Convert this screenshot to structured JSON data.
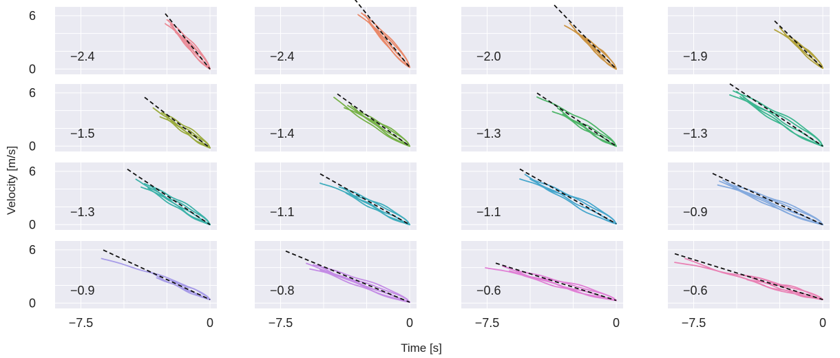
{
  "figure": {
    "xlabel": "Time [s]",
    "ylabel": "Velocity [m/s]",
    "xticks": [
      -7.5,
      0
    ],
    "xtick_labels": [
      "−7.5",
      "0"
    ],
    "yticks": [
      0,
      6
    ],
    "ytick_labels": [
      "0",
      "6"
    ],
    "xlim": [
      -9,
      0.4
    ],
    "ylim": [
      -0.6,
      7
    ],
    "background": "#eaeaf2",
    "grid": true
  },
  "chart_data": [
    {
      "type": "line",
      "label": "−2.4",
      "color": "#ea8a96",
      "t0": -2.6,
      "slope": -2.4,
      "v_end": 0.0,
      "tstarts": [
        -2.6,
        -2.4,
        -2.2,
        -2.5,
        -2.1,
        -2.3,
        -2.0
      ],
      "wobble": 0.3
    },
    {
      "type": "line",
      "label": "−2.4",
      "color": "#e9896a",
      "t0": -3.2,
      "slope": -2.4,
      "v_end": 0.2,
      "tstarts": [
        -3.0,
        -2.6,
        -2.2,
        -2.8,
        -2.4,
        -2.0
      ],
      "wobble": 0.2
    },
    {
      "type": "line",
      "label": "−2.0",
      "color": "#cc9545",
      "t0": -3.6,
      "slope": -2.0,
      "v_end": 0.0,
      "tstarts": [
        -3.0,
        -2.7,
        -2.4,
        -2.0,
        -1.8,
        -2.2
      ],
      "wobble": 0.3
    },
    {
      "type": "line",
      "label": "−1.9",
      "color": "#b2a33c",
      "t0": -2.8,
      "slope": -1.9,
      "v_end": 0.1,
      "tstarts": [
        -2.8,
        -2.5,
        -2.2,
        -2.0
      ],
      "wobble": 0.2
    },
    {
      "type": "line",
      "label": "−1.5",
      "color": "#9aab3e",
      "t0": -3.8,
      "slope": -1.5,
      "v_end": -0.2,
      "tstarts": [
        -2.9,
        -2.7,
        -3.3,
        -2.8,
        -2.5
      ],
      "wobble": 0.4
    },
    {
      "type": "line",
      "label": "−1.4",
      "color": "#77b148",
      "t0": -4.2,
      "slope": -1.4,
      "v_end": 0.0,
      "tstarts": [
        -3.8,
        -3.4,
        -3.1,
        -2.9,
        -4.4,
        -3.6
      ],
      "wobble": 0.3
    },
    {
      "type": "line",
      "label": "−1.3",
      "color": "#4eb569",
      "t0": -4.6,
      "slope": -1.3,
      "v_end": 0.0,
      "tstarts": [
        -3.7,
        -3.4,
        -3.1,
        -4.6,
        -3.0
      ],
      "wobble": 0.4
    },
    {
      "type": "line",
      "label": "−1.3",
      "color": "#3db690",
      "t0": -5.4,
      "slope": -1.3,
      "v_end": 0.0,
      "tstarts": [
        -5.4,
        -5.0,
        -4.6,
        -5.2,
        -4.8
      ],
      "wobble": 0.5
    },
    {
      "type": "line",
      "label": "−1.3",
      "color": "#3bb1a8",
      "t0": -4.8,
      "slope": -1.3,
      "v_end": 0.0,
      "tstarts": [
        -4.0,
        -3.4,
        -4.3,
        -3.8,
        -3.6
      ],
      "wobble": 0.4
    },
    {
      "type": "line",
      "label": "−1.1",
      "color": "#3fadbd",
      "t0": -5.2,
      "slope": -1.1,
      "v_end": 0.0,
      "tstarts": [
        -5.2,
        -3.9,
        -3.5,
        -4.1,
        -3.7
      ],
      "wobble": 0.4
    },
    {
      "type": "line",
      "label": "−1.1",
      "color": "#46a6cc",
      "t0": -5.6,
      "slope": -1.1,
      "v_end": 0.1,
      "tstarts": [
        -5.6,
        -5.3,
        -5.0,
        -4.8
      ],
      "wobble": 0.5
    },
    {
      "type": "line",
      "label": "−0.9",
      "color": "#85aade",
      "t0": -6.4,
      "slope": -0.9,
      "v_end": 0.0,
      "tstarts": [
        -6.1,
        -5.8,
        -5.6,
        -5.4,
        -5.2,
        -6.0
      ],
      "wobble": 0.3
    },
    {
      "type": "line",
      "label": "−0.9",
      "color": "#a79ce8",
      "t0": -6.2,
      "slope": -0.9,
      "v_end": 0.4,
      "tstarts": [
        -6.3,
        -3.5,
        -3.1,
        -2.5,
        -2.2
      ],
      "wobble": 0.3
    },
    {
      "type": "line",
      "label": "−0.8",
      "color": "#c48ce5",
      "t0": -7.2,
      "slope": -0.8,
      "v_end": 0.1,
      "tstarts": [
        -5.8,
        -5.4,
        -5.0,
        -5.6,
        -5.2,
        -6.0
      ],
      "wobble": 0.3
    },
    {
      "type": "line",
      "label": "−0.6",
      "color": "#e07fd5",
      "t0": -7.0,
      "slope": -0.6,
      "v_end": 0.3,
      "tstarts": [
        -7.6,
        -6.6,
        -6.2,
        -5.8,
        -5.4
      ],
      "wobble": 0.4
    },
    {
      "type": "line",
      "label": "−0.6",
      "color": "#e981b4",
      "t0": -8.6,
      "slope": -0.6,
      "v_end": 0.4,
      "tstarts": [
        -8.6,
        -8.0,
        -5.0,
        -4.7,
        -4.4,
        -4.1
      ],
      "wobble": 0.5
    }
  ]
}
